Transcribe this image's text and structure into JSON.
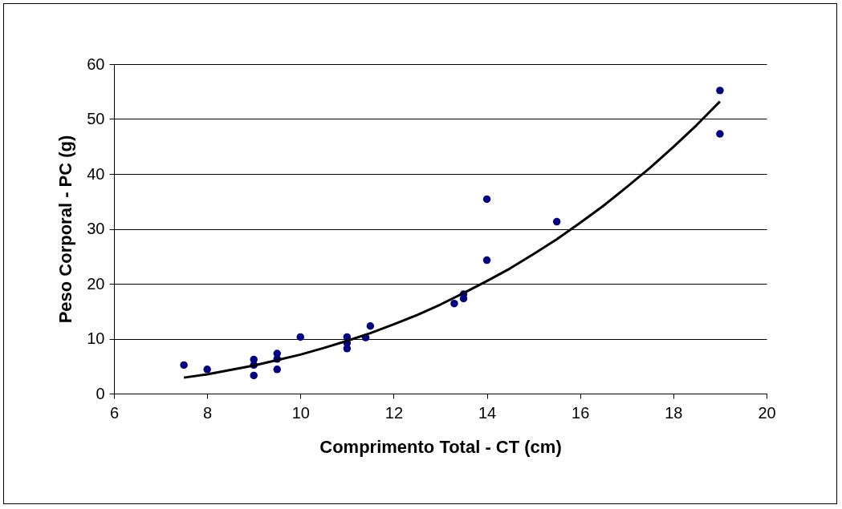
{
  "chart_data": {
    "type": "scatter",
    "xlabel": "Comprimento Total - CT (cm)",
    "ylabel": "Peso Corporal - PC (g)",
    "xlim": [
      6,
      20
    ],
    "xticks": [
      6,
      8,
      10,
      12,
      14,
      16,
      18,
      20
    ],
    "ylim": [
      0,
      60
    ],
    "yticks": [
      0,
      10,
      20,
      30,
      40,
      50,
      60
    ],
    "grid": "y",
    "marker": "circle",
    "series": [
      {
        "type": "scatter",
        "color": "#000080",
        "x": [
          7.5,
          8,
          9,
          9,
          9,
          9.5,
          9.5,
          9.5,
          10,
          11,
          11,
          11,
          11.4,
          11.5,
          13.3,
          13.5,
          13.5,
          14,
          14,
          15.5,
          19,
          19
        ],
        "values": [
          5.2,
          4.4,
          6.2,
          5.2,
          3.3,
          7.3,
          6.3,
          4.4,
          10.3,
          10.3,
          9.2,
          8.2,
          10.2,
          12.3,
          16.4,
          17.3,
          18.1,
          35.4,
          24.3,
          31.3,
          55.2,
          47.3
        ]
      },
      {
        "type": "line",
        "color": "#000000",
        "x": [
          7.5,
          8,
          8.5,
          9,
          9.5,
          10,
          10.5,
          11,
          11.5,
          12,
          12.5,
          13,
          13.5,
          14,
          14.5,
          15,
          15.5,
          16,
          16.5,
          17,
          17.5,
          18,
          18.5,
          19
        ],
        "values": [
          2.9,
          3.5,
          4.3,
          5.1,
          6.1,
          7.1,
          8.3,
          9.6,
          11.0,
          12.6,
          14.3,
          16.2,
          18.3,
          20.5,
          22.8,
          25.4,
          28.1,
          31.1,
          34.2,
          37.6,
          41.1,
          44.9,
          48.9,
          53.2
        ],
        "marker": "none",
        "line_style": "solid"
      }
    ]
  }
}
